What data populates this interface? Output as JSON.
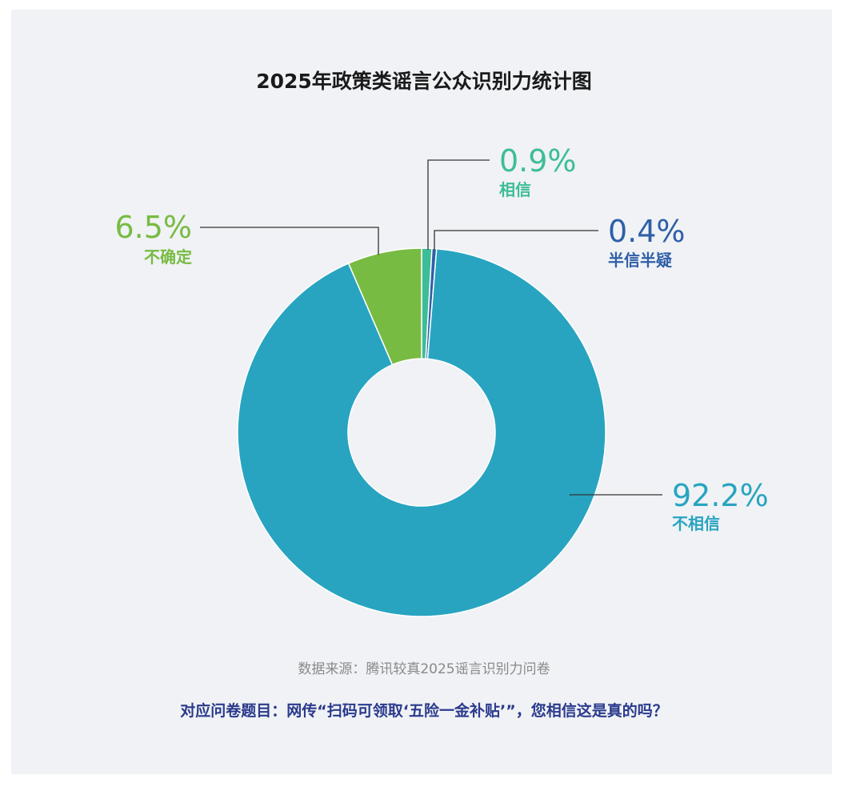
{
  "chart_data": {
    "type": "pie",
    "title": "2025年政策类谣言公众识别力统计图",
    "slices": [
      {
        "label": "相信",
        "value": 0.9,
        "display": "0.9%",
        "color": "#3dbd97"
      },
      {
        "label": "半信半疑",
        "value": 0.4,
        "display": "0.4%",
        "color": "#2e5fa8"
      },
      {
        "label": "不相信",
        "value": 92.2,
        "display": "92.2%",
        "color": "#28a4c1"
      },
      {
        "label": "不确定",
        "value": 6.5,
        "display": "6.5%",
        "color": "#78bb42"
      }
    ],
    "legend": "none"
  },
  "footer": {
    "source": "数据来源：腾讯较真2025谣言识别力问卷",
    "question": "对应问卷题目：网传“扫码可领取‘五险一金补贴’”，您相信这是真的吗？"
  }
}
